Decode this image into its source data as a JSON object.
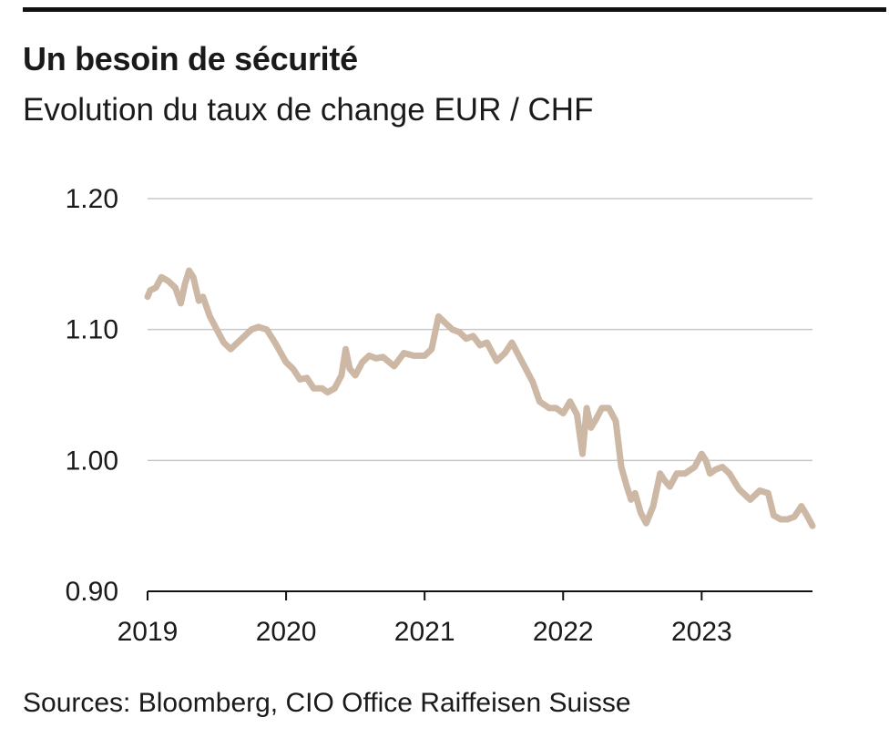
{
  "title": "Un besoin de sécurité",
  "subtitle": "Evolution du taux de change EUR / CHF",
  "source": "Sources: Bloomberg, CIO Office Raiffeisen Suisse",
  "colors": {
    "line": "#cdb8a6",
    "grid": "#c8c8c8",
    "axis": "#111111",
    "rule": "#111111"
  },
  "chart_data": {
    "type": "line",
    "title": "Un besoin de sécurité",
    "subtitle": "Evolution du taux de change EUR / CHF",
    "xlabel": "",
    "ylabel": "",
    "ylim": [
      0.9,
      1.2
    ],
    "xlim": [
      2019.0,
      2023.8
    ],
    "yticks": [
      0.9,
      1.0,
      1.1,
      1.2
    ],
    "ytick_labels": [
      "0.90",
      "1.00",
      "1.10",
      "1.20"
    ],
    "xticks": [
      2019,
      2020,
      2021,
      2022,
      2023
    ],
    "xtick_labels": [
      "2019",
      "2020",
      "2021",
      "2022",
      "2023"
    ],
    "grid": true,
    "series": [
      {
        "x": [
          2019.0,
          2019.02,
          2019.06,
          2019.1,
          2019.15,
          2019.2,
          2019.24,
          2019.27,
          2019.3,
          2019.33,
          2019.37,
          2019.4,
          2019.45,
          2019.5,
          2019.55,
          2019.6,
          2019.65,
          2019.7,
          2019.75,
          2019.8,
          2019.86,
          2019.92,
          2020.0,
          2020.05,
          2020.1,
          2020.15,
          2020.2,
          2020.26,
          2020.3,
          2020.35,
          2020.4,
          2020.43,
          2020.46,
          2020.5,
          2020.55,
          2020.6,
          2020.65,
          2020.7,
          2020.78,
          2020.85,
          2020.92,
          2021.0,
          2021.05,
          2021.1,
          2021.15,
          2021.2,
          2021.25,
          2021.3,
          2021.35,
          2021.4,
          2021.45,
          2021.52,
          2021.58,
          2021.63,
          2021.68,
          2021.73,
          2021.78,
          2021.83,
          2021.9,
          2021.95,
          2022.0,
          2022.05,
          2022.1,
          2022.14,
          2022.17,
          2022.2,
          2022.23,
          2022.28,
          2022.33,
          2022.38,
          2022.42,
          2022.46,
          2022.49,
          2022.52,
          2022.56,
          2022.6,
          2022.65,
          2022.7,
          2022.73,
          2022.77,
          2022.82,
          2022.88,
          2022.95,
          2023.0,
          2023.03,
          2023.06,
          2023.1,
          2023.15,
          2023.2,
          2023.27,
          2023.35,
          2023.42,
          2023.48,
          2023.52,
          2023.57,
          2023.62,
          2023.67,
          2023.72,
          2023.76,
          2023.8
        ],
        "values": [
          1.125,
          1.13,
          1.132,
          1.14,
          1.137,
          1.132,
          1.12,
          1.135,
          1.145,
          1.14,
          1.122,
          1.125,
          1.11,
          1.1,
          1.09,
          1.085,
          1.09,
          1.095,
          1.1,
          1.102,
          1.1,
          1.09,
          1.075,
          1.07,
          1.062,
          1.063,
          1.055,
          1.055,
          1.052,
          1.055,
          1.065,
          1.085,
          1.07,
          1.065,
          1.075,
          1.08,
          1.078,
          1.079,
          1.072,
          1.082,
          1.08,
          1.08,
          1.085,
          1.11,
          1.105,
          1.1,
          1.098,
          1.093,
          1.095,
          1.088,
          1.09,
          1.076,
          1.082,
          1.09,
          1.08,
          1.07,
          1.06,
          1.045,
          1.04,
          1.04,
          1.036,
          1.045,
          1.035,
          1.005,
          1.04,
          1.025,
          1.03,
          1.04,
          1.04,
          1.03,
          0.995,
          0.98,
          0.97,
          0.975,
          0.96,
          0.952,
          0.965,
          0.99,
          0.985,
          0.98,
          0.99,
          0.99,
          0.995,
          1.005,
          1.0,
          0.99,
          0.993,
          0.995,
          0.99,
          0.978,
          0.97,
          0.977,
          0.975,
          0.958,
          0.955,
          0.955,
          0.957,
          0.965,
          0.958,
          0.95
        ]
      }
    ]
  }
}
